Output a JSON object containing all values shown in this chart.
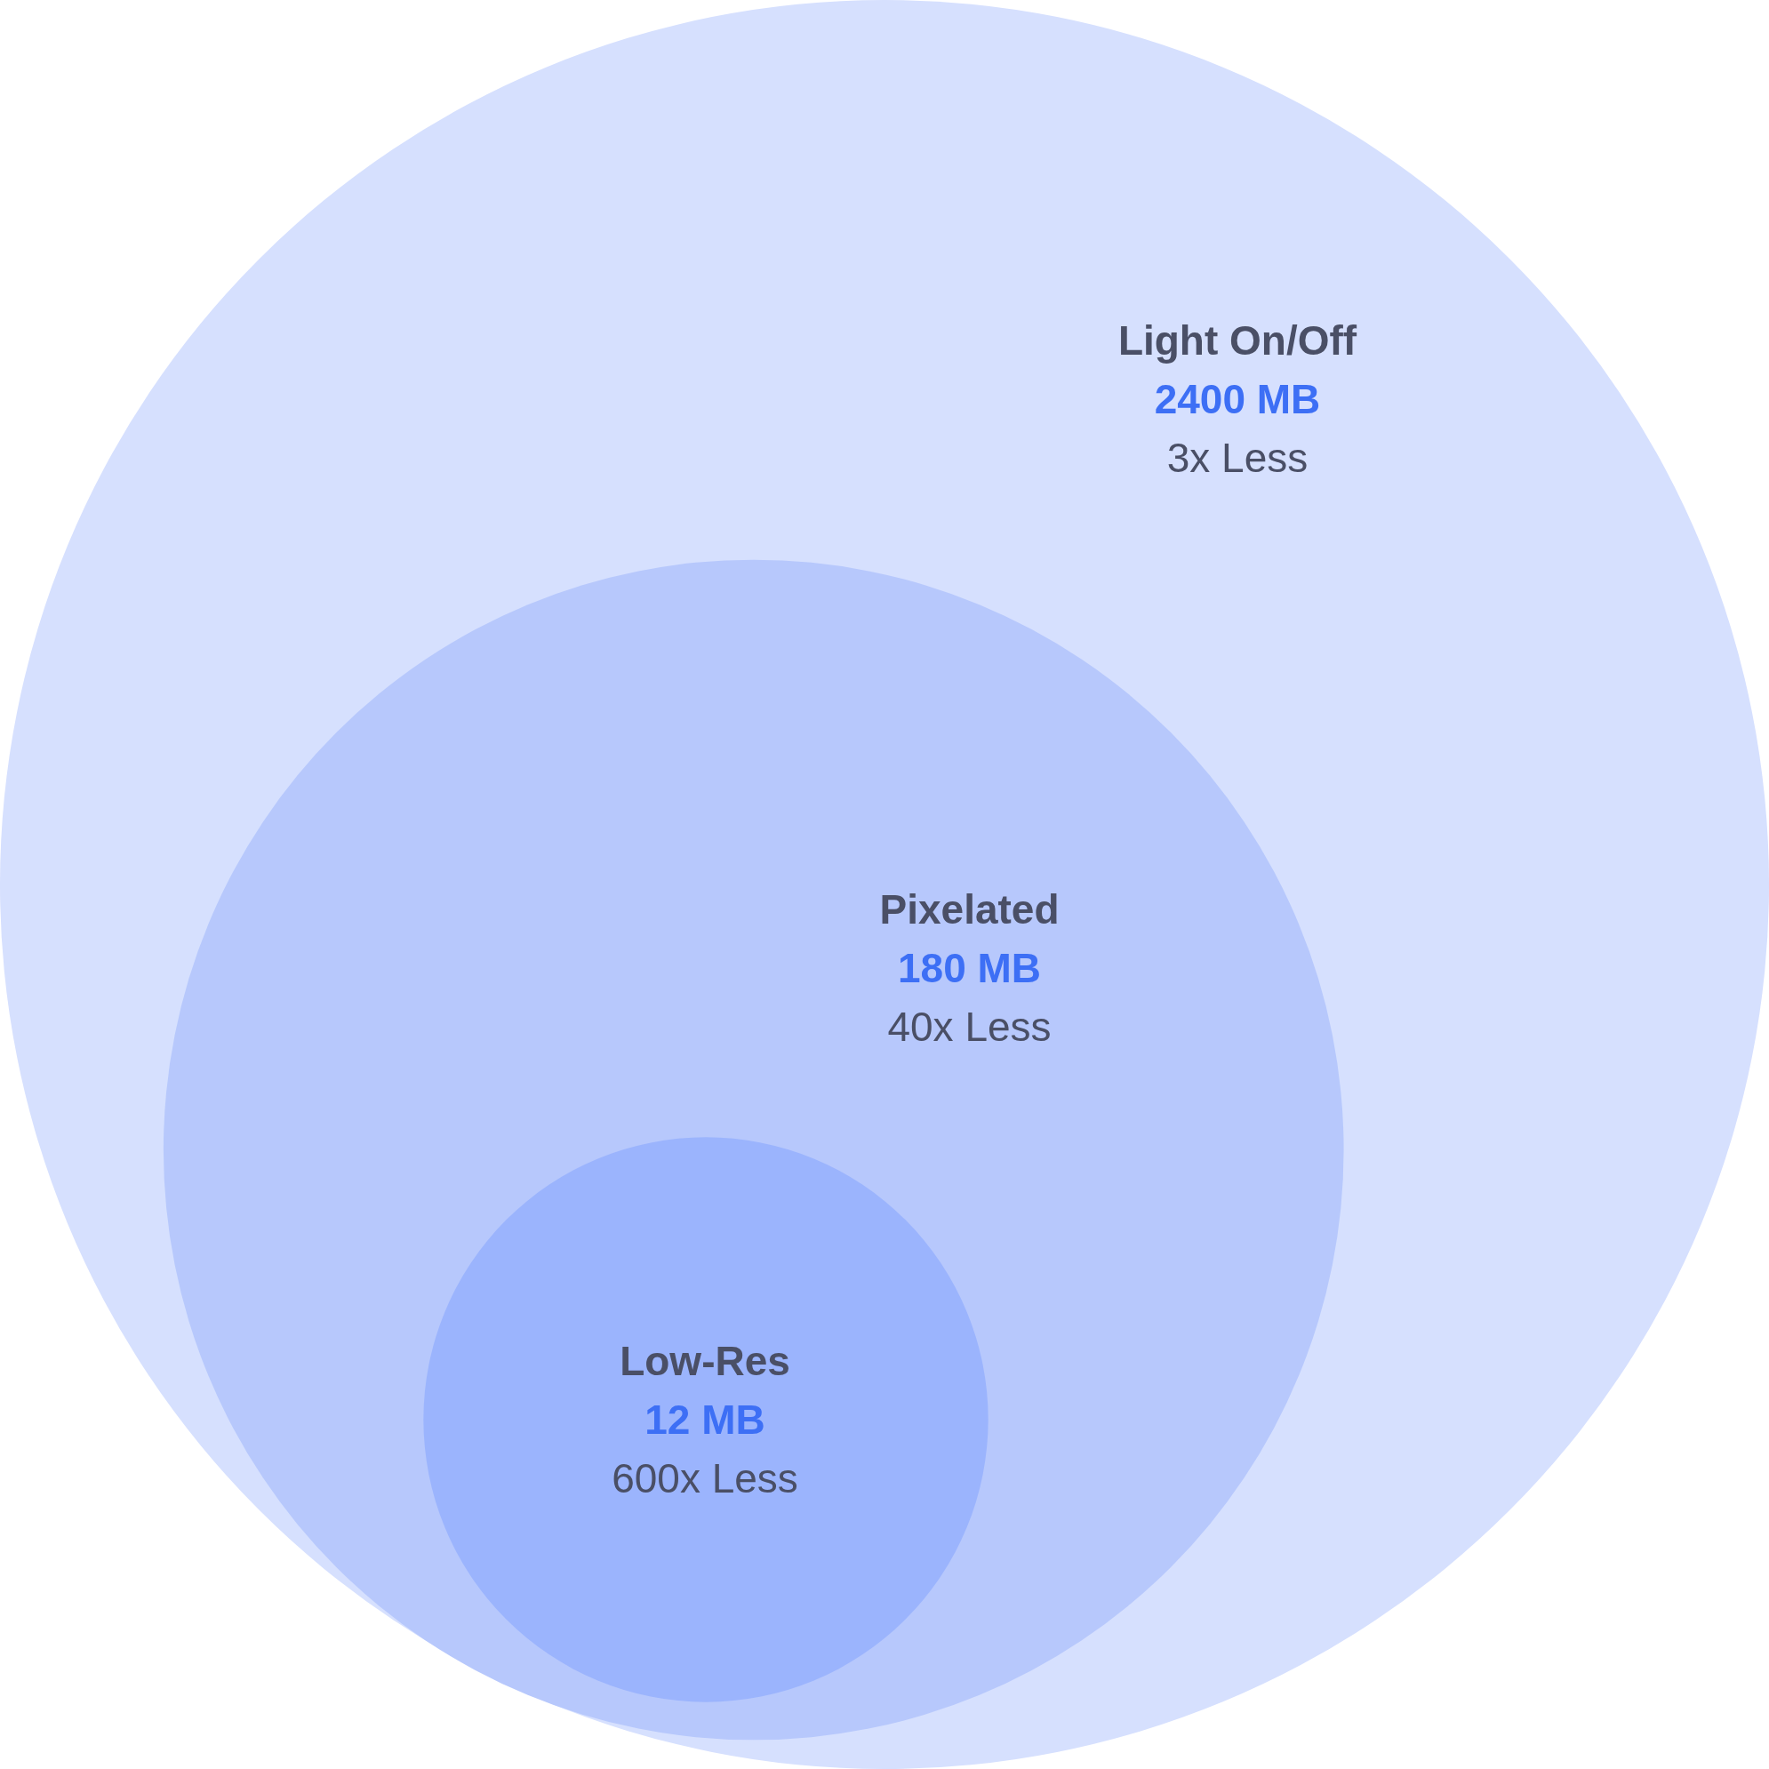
{
  "chart_data": {
    "type": "other",
    "categories": [
      "Light On/Off",
      "Pixelated",
      "Low-Res"
    ],
    "values": [
      2400,
      180,
      12
    ],
    "value_labels": [
      "2400 MB",
      "180 MB",
      "12 MB"
    ],
    "annotations": [
      "3x Less",
      "40x Less",
      "600x Less"
    ],
    "colors": [
      "#d6e0fe",
      "#b7c8fc",
      "#9bb4fd"
    ]
  }
}
